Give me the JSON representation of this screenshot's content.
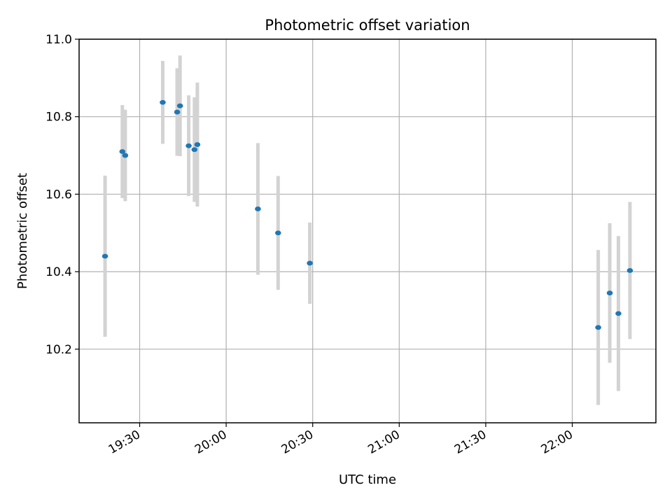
{
  "chart_data": {
    "type": "scatter",
    "title": "Photometric offset variation",
    "xlabel": "UTC time",
    "ylabel": "Photometric offset",
    "xlim": [
      "19:09",
      "22:29"
    ],
    "ylim": [
      10.01,
      11.0
    ],
    "grid": true,
    "x_ticks": [
      "19:30",
      "20:00",
      "20:30",
      "21:00",
      "21:30",
      "22:00"
    ],
    "y_ticks": [
      10.2,
      10.4,
      10.6,
      10.8,
      11.0
    ],
    "y_tick_labels": [
      "10.2",
      "10.4",
      "10.6",
      "10.8",
      "11.0"
    ],
    "colors": {
      "points": "#1f77b4",
      "errorbars": "#d3d3d3",
      "grid": "#b0b0b0"
    },
    "series": [
      {
        "points": [
          {
            "x": "19:18",
            "y": 10.44,
            "err": 0.208
          },
          {
            "x": "19:24",
            "y": 10.71,
            "err": 0.12
          },
          {
            "x": "19:25",
            "y": 10.7,
            "err": 0.118
          },
          {
            "x": "19:38",
            "y": 10.837,
            "err": 0.107
          },
          {
            "x": "19:43",
            "y": 10.812,
            "err": 0.113
          },
          {
            "x": "19:44",
            "y": 10.828,
            "err": 0.13
          },
          {
            "x": "19:47",
            "y": 10.725,
            "err": 0.13
          },
          {
            "x": "19:49",
            "y": 10.715,
            "err": 0.135
          },
          {
            "x": "19:50",
            "y": 10.728,
            "err": 0.16
          },
          {
            "x": "20:11",
            "y": 10.562,
            "err": 0.17
          },
          {
            "x": "20:18",
            "y": 10.5,
            "err": 0.147
          },
          {
            "x": "20:29",
            "y": 10.422,
            "err": 0.105
          },
          {
            "x": "22:09",
            "y": 10.256,
            "err": 0.2
          },
          {
            "x": "22:13",
            "y": 10.345,
            "err": 0.18
          },
          {
            "x": "22:16",
            "y": 10.292,
            "err": 0.2
          },
          {
            "x": "22:20",
            "y": 10.403,
            "err": 0.177
          }
        ]
      }
    ]
  }
}
